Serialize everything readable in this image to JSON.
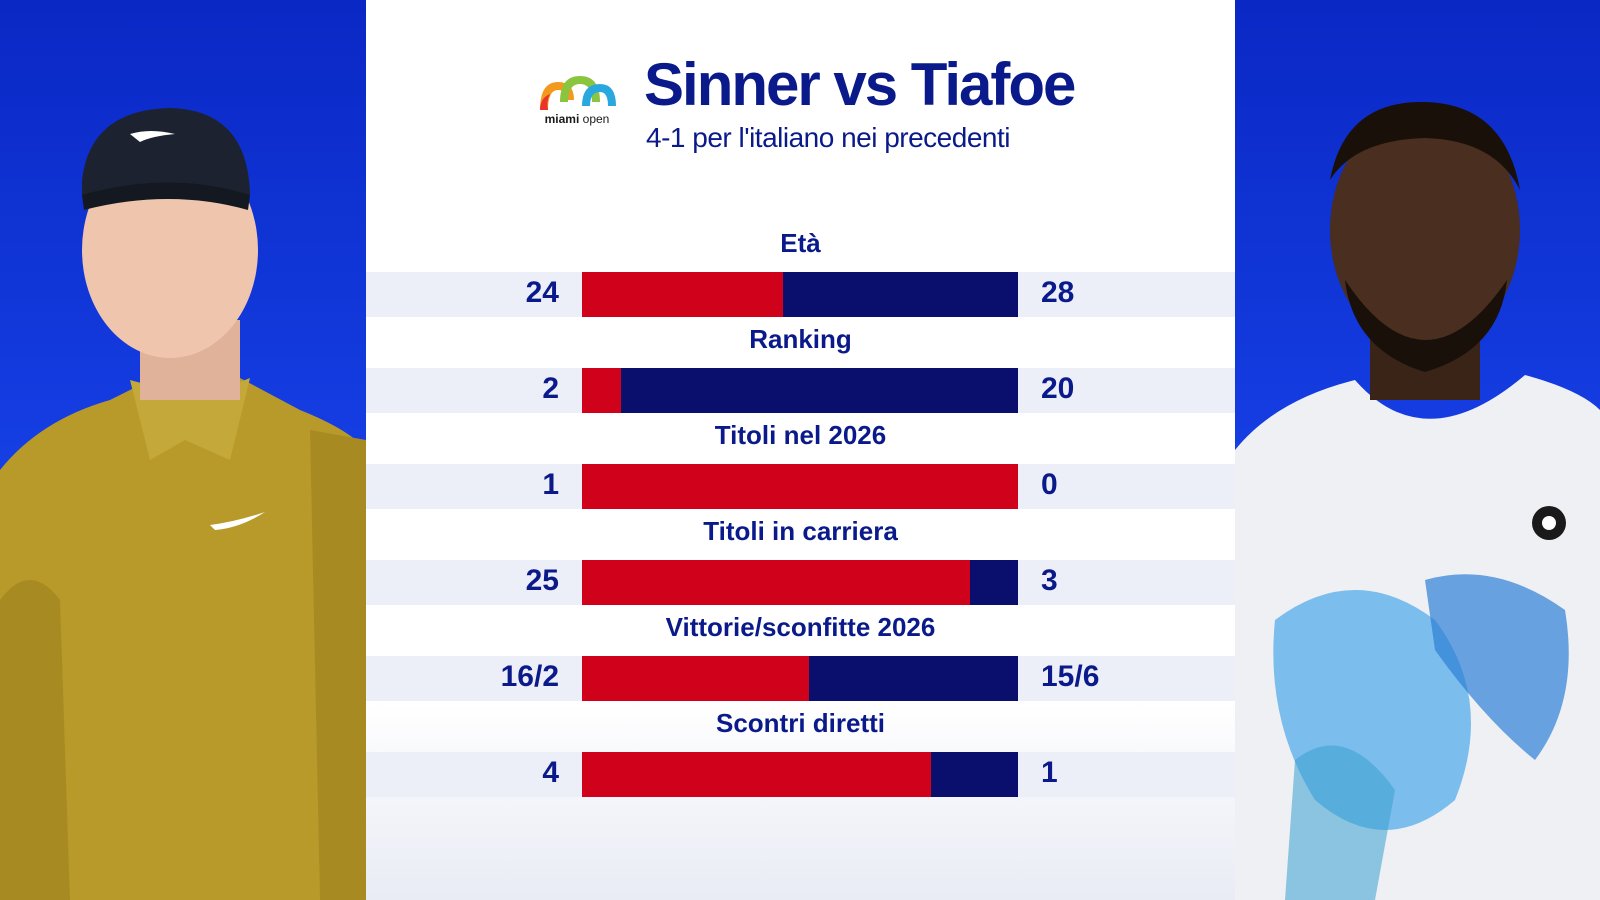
{
  "header": {
    "logo_text_bold": "miami",
    "logo_text_regular": "open",
    "title": "Sinner vs Tiafoe",
    "subtitle": "4-1 per l'italiano nei precedenti"
  },
  "colors": {
    "left_player": "#d0021b",
    "right_player": "#0a0f6e",
    "text": "#0b1a8a",
    "background_side": "#0a2bd0"
  },
  "players": {
    "left": {
      "icon": "sinner-portrait-icon"
    },
    "right": {
      "icon": "tiafoe-portrait-icon"
    }
  },
  "chart_data": {
    "type": "bar",
    "orientation": "horizontal-stacked-comparison",
    "categories": [
      "Età",
      "Ranking",
      "Titoli nel 2026",
      "Titoli in carriera",
      "Vittorie/sconfitte 2026",
      "Scontri diretti"
    ],
    "series": [
      {
        "values": [
          24,
          2,
          1,
          25,
          16,
          4
        ],
        "labels": [
          "24",
          "2",
          "1",
          "25",
          "16/2",
          "4"
        ],
        "share": [
          0.46,
          0.09,
          1.0,
          0.89,
          0.52,
          0.8
        ]
      },
      {
        "values": [
          28,
          20,
          0,
          3,
          15,
          1
        ],
        "labels": [
          "28",
          "20",
          "0",
          "3",
          "15/6",
          "1"
        ],
        "share": [
          0.54,
          0.91,
          0.0,
          0.11,
          0.48,
          0.2
        ]
      }
    ]
  }
}
